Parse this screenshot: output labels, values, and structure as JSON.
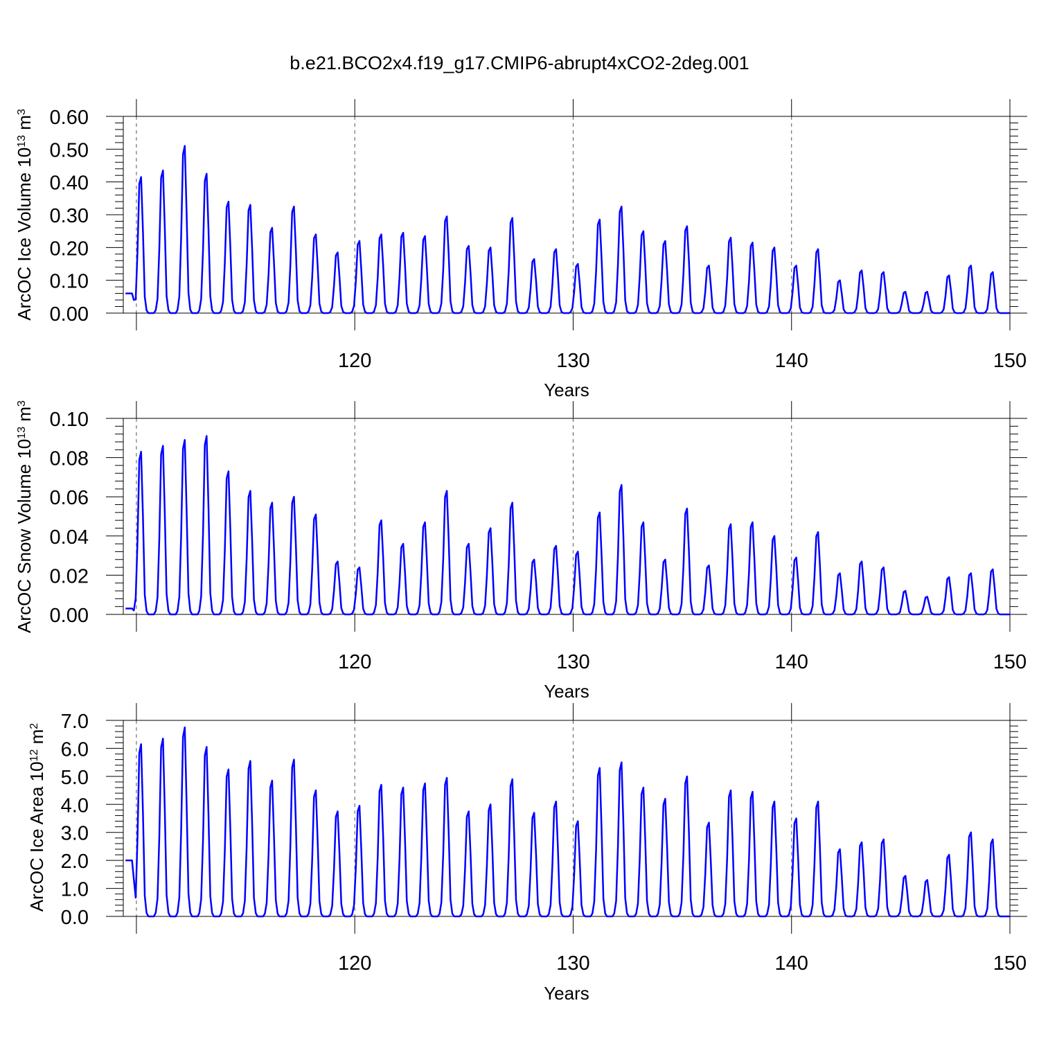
{
  "title": "b.e21.BCO2x4.f19_g17.CMIP6-abrupt4xCO2-2deg.001",
  "colors": {
    "line": "#0000ff",
    "axis": "#000000",
    "grid": "#555555",
    "background": "#ffffff"
  },
  "chart_data": [
    {
      "type": "line",
      "ylabel_main": "ArcOC Ice Volume 10",
      "ylabel_exp": "13",
      "ylabel_unit": " m",
      "ylabel_unit_exp": "3",
      "xlabel": "Years",
      "xlim": [
        109.4,
        150
      ],
      "ylim": [
        0,
        0.6
      ],
      "yticks": [
        "0.00",
        "0.10",
        "0.20",
        "0.30",
        "0.40",
        "0.50",
        "0.60"
      ],
      "xticks": [
        "120",
        "130",
        "140",
        "150"
      ],
      "grid": "dashed vertical at x ticks",
      "series": [
        {
          "name": "ArcOC Ice Volume",
          "start_year": 109.5,
          "start_value": 0.06,
          "peaks": [
            0.415,
            0.435,
            0.51,
            0.425,
            0.34,
            0.33,
            0.26,
            0.325,
            0.24,
            0.185,
            0.22,
            0.24,
            0.245,
            0.235,
            0.295,
            0.205,
            0.2,
            0.29,
            0.165,
            0.195,
            0.15,
            0.285,
            0.325,
            0.25,
            0.22,
            0.265,
            0.145,
            0.23,
            0.215,
            0.2,
            0.145,
            0.195,
            0.1,
            0.13,
            0.125,
            0.065,
            0.065,
            0.115,
            0.145,
            0.125
          ]
        }
      ]
    },
    {
      "type": "line",
      "ylabel_main": "ArcOC Snow Volume 10",
      "ylabel_exp": "13",
      "ylabel_unit": " m",
      "ylabel_unit_exp": "3",
      "xlabel": "Years",
      "xlim": [
        109.4,
        150
      ],
      "ylim": [
        0,
        0.1
      ],
      "yticks": [
        "0.00",
        "0.02",
        "0.04",
        "0.06",
        "0.08",
        "0.10"
      ],
      "xticks": [
        "120",
        "130",
        "140",
        "150"
      ],
      "grid": "dashed vertical at x ticks",
      "series": [
        {
          "name": "ArcOC Snow Volume",
          "start_year": 109.5,
          "start_value": 0.003,
          "peaks": [
            0.083,
            0.086,
            0.089,
            0.091,
            0.073,
            0.063,
            0.057,
            0.06,
            0.051,
            0.027,
            0.024,
            0.048,
            0.036,
            0.047,
            0.063,
            0.036,
            0.044,
            0.057,
            0.028,
            0.035,
            0.032,
            0.052,
            0.066,
            0.047,
            0.028,
            0.054,
            0.025,
            0.046,
            0.047,
            0.04,
            0.029,
            0.042,
            0.021,
            0.027,
            0.024,
            0.012,
            0.009,
            0.019,
            0.021,
            0.023
          ]
        }
      ]
    },
    {
      "type": "line",
      "ylabel_main": "ArcOC Ice Area 10",
      "ylabel_exp": "12",
      "ylabel_unit": " m",
      "ylabel_unit_exp": "2",
      "xlabel": "Years",
      "xlim": [
        109.4,
        150
      ],
      "ylim": [
        0,
        7
      ],
      "yticks": [
        "0.0",
        "1.0",
        "2.0",
        "3.0",
        "4.0",
        "5.0",
        "6.0",
        "7.0"
      ],
      "xticks": [
        "120",
        "130",
        "140",
        "150"
      ],
      "grid": "dashed vertical at x ticks",
      "series": [
        {
          "name": "ArcOC Ice Area",
          "start_year": 109.5,
          "start_value": 2.0,
          "peaks": [
            6.15,
            6.35,
            6.75,
            6.05,
            5.25,
            5.55,
            4.85,
            5.6,
            4.5,
            3.75,
            3.95,
            4.7,
            4.6,
            4.75,
            4.95,
            3.75,
            4.0,
            4.9,
            3.7,
            4.1,
            3.4,
            5.3,
            5.5,
            4.6,
            4.2,
            5.0,
            3.35,
            4.5,
            4.45,
            4.1,
            3.5,
            4.1,
            2.4,
            2.65,
            2.75,
            1.45,
            1.3,
            2.2,
            3.0,
            2.75
          ]
        }
      ]
    }
  ]
}
